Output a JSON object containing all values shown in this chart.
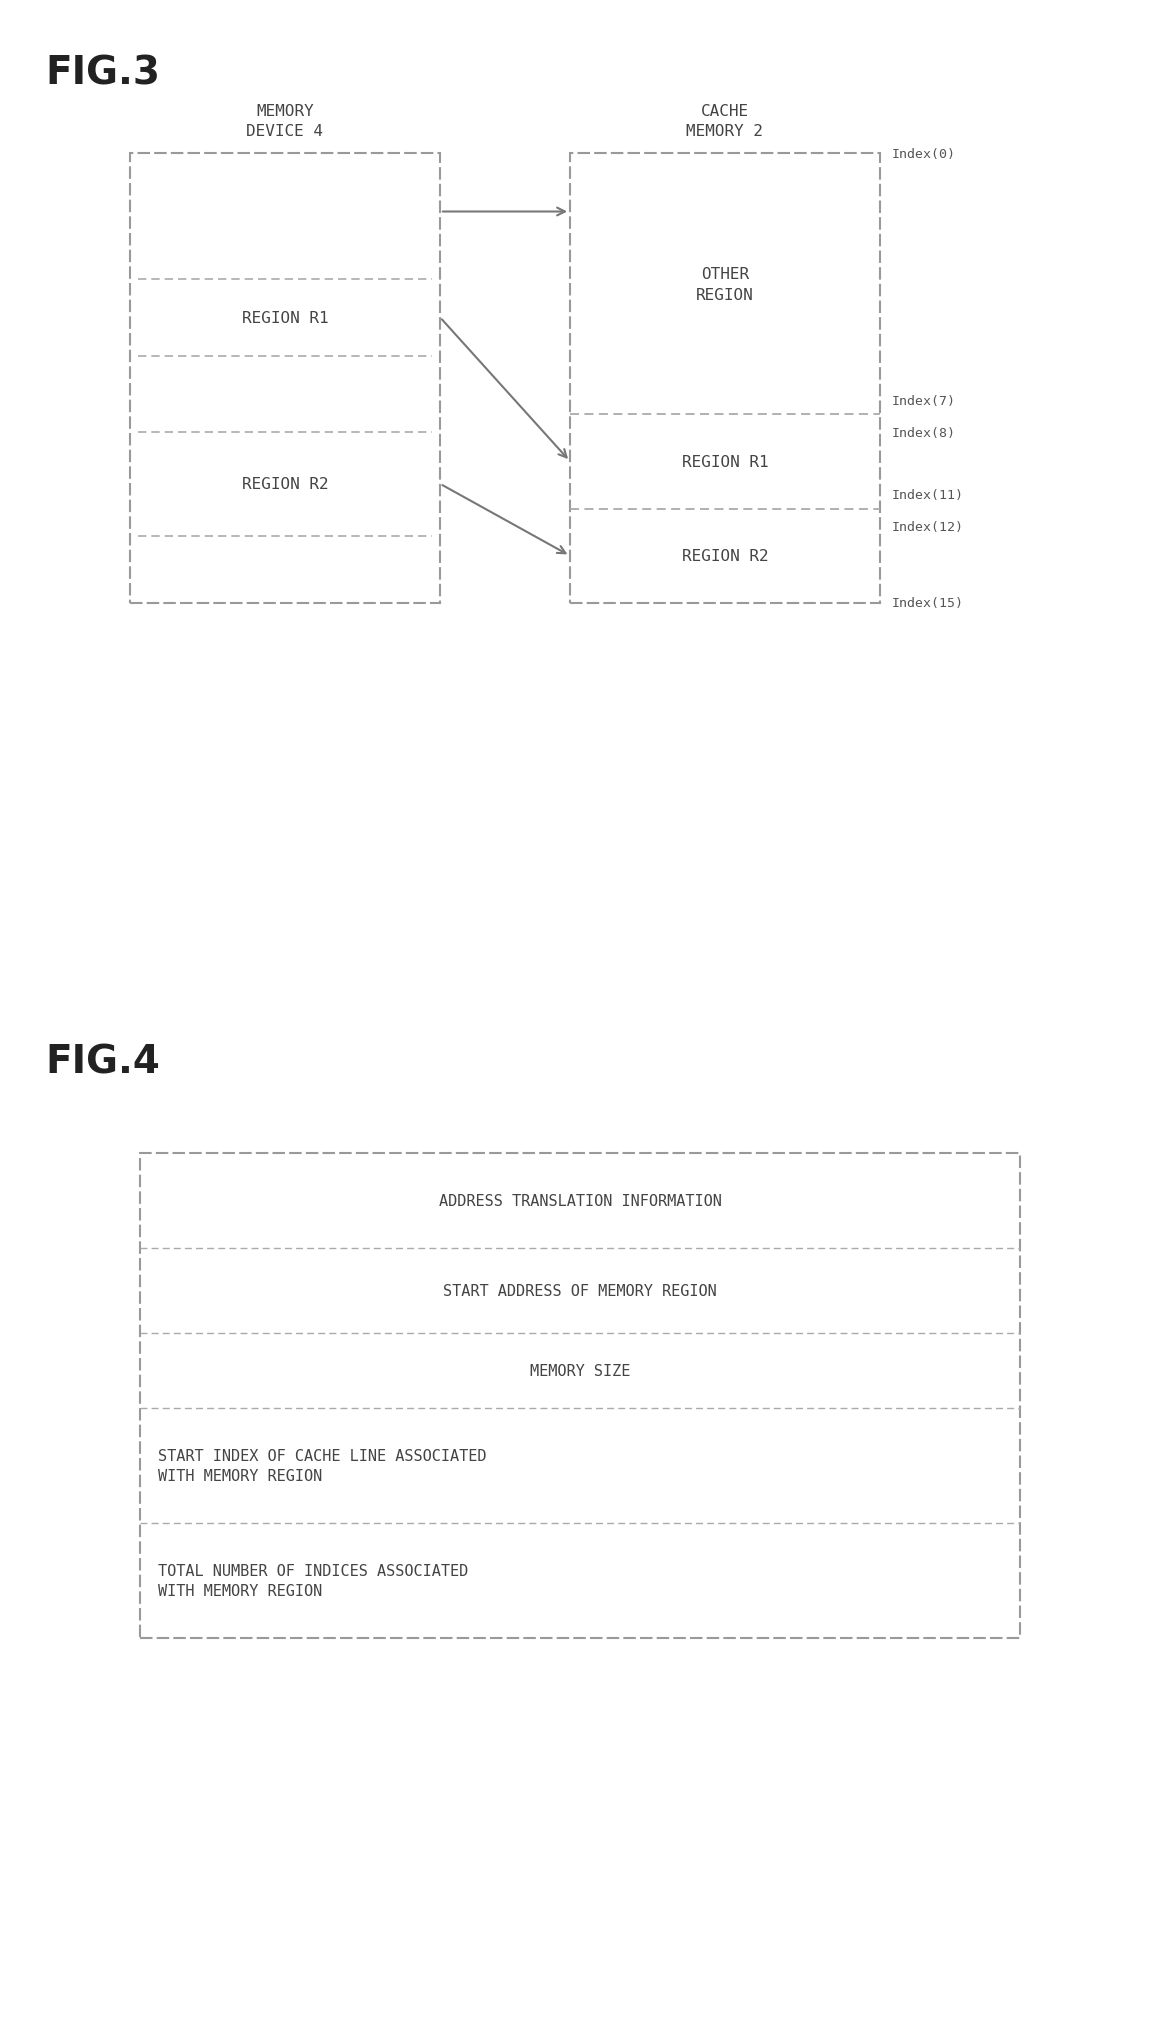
{
  "fig_label_1": "FIG.3",
  "fig_label_2": "FIG.4",
  "bg_color": "#ffffff",
  "memory_device_label": "MEMORY\nDEVICE 4",
  "cache_memory_label": "CACHE\nMEMORY 2",
  "mem_regions": [
    "REGION R1",
    "REGION R2"
  ],
  "cache_sections": [
    "OTHER\nREGION",
    "REGION R1",
    "REGION R2"
  ],
  "index_labels_right": [
    "Index(0)",
    "Index(7)",
    "Index(8)",
    "Index(11)",
    "Index(12)",
    "Index(15)"
  ],
  "fig4_rows": [
    "ADDRESS TRANSLATION INFORMATION",
    "START ADDRESS OF MEMORY REGION",
    "MEMORY SIZE",
    "START INDEX OF CACHE LINE ASSOCIATED\nWITH MEMORY REGION",
    "TOTAL NUMBER OF INDICES ASSOCIATED\nWITH MEMORY REGION"
  ],
  "edge_color": "#999999",
  "dash_color": "#aaaaaa",
  "text_color": "#444444",
  "index_color": "#555555",
  "fig_label_size": 28,
  "body_font_size": 11.5,
  "index_font_size": 9.5
}
